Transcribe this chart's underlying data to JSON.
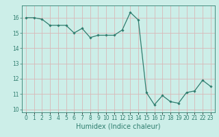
{
  "x": [
    0,
    1,
    2,
    3,
    4,
    5,
    6,
    7,
    8,
    9,
    10,
    11,
    12,
    13,
    14,
    15,
    16,
    17,
    18,
    19,
    20,
    21,
    22,
    23
  ],
  "y": [
    16.0,
    16.0,
    15.9,
    15.5,
    15.5,
    15.5,
    15.0,
    15.3,
    14.7,
    14.85,
    14.85,
    14.85,
    15.2,
    16.35,
    15.85,
    11.1,
    10.3,
    10.9,
    10.5,
    10.4,
    11.1,
    11.2,
    11.9,
    11.5
  ],
  "line_color": "#2e7d6e",
  "marker": "D",
  "marker_size": 1.8,
  "linewidth": 0.9,
  "xlabel": "Humidex (Indice chaleur)",
  "xlabel_fontsize": 7,
  "ylim": [
    9.8,
    16.8
  ],
  "xlim": [
    -0.5,
    23.5
  ],
  "yticks": [
    10,
    11,
    12,
    13,
    14,
    15,
    16
  ],
  "xtick_labels": [
    "0",
    "1",
    "2",
    "3",
    "4",
    "5",
    "6",
    "7",
    "8",
    "9",
    "10",
    "11",
    "12",
    "13",
    "14",
    "15",
    "16",
    "17",
    "18",
    "19",
    "20",
    "21",
    "22",
    "23"
  ],
  "grid_color": "#d9b8b8",
  "bg_color": "#cceee8",
  "tick_fontsize": 5.5
}
